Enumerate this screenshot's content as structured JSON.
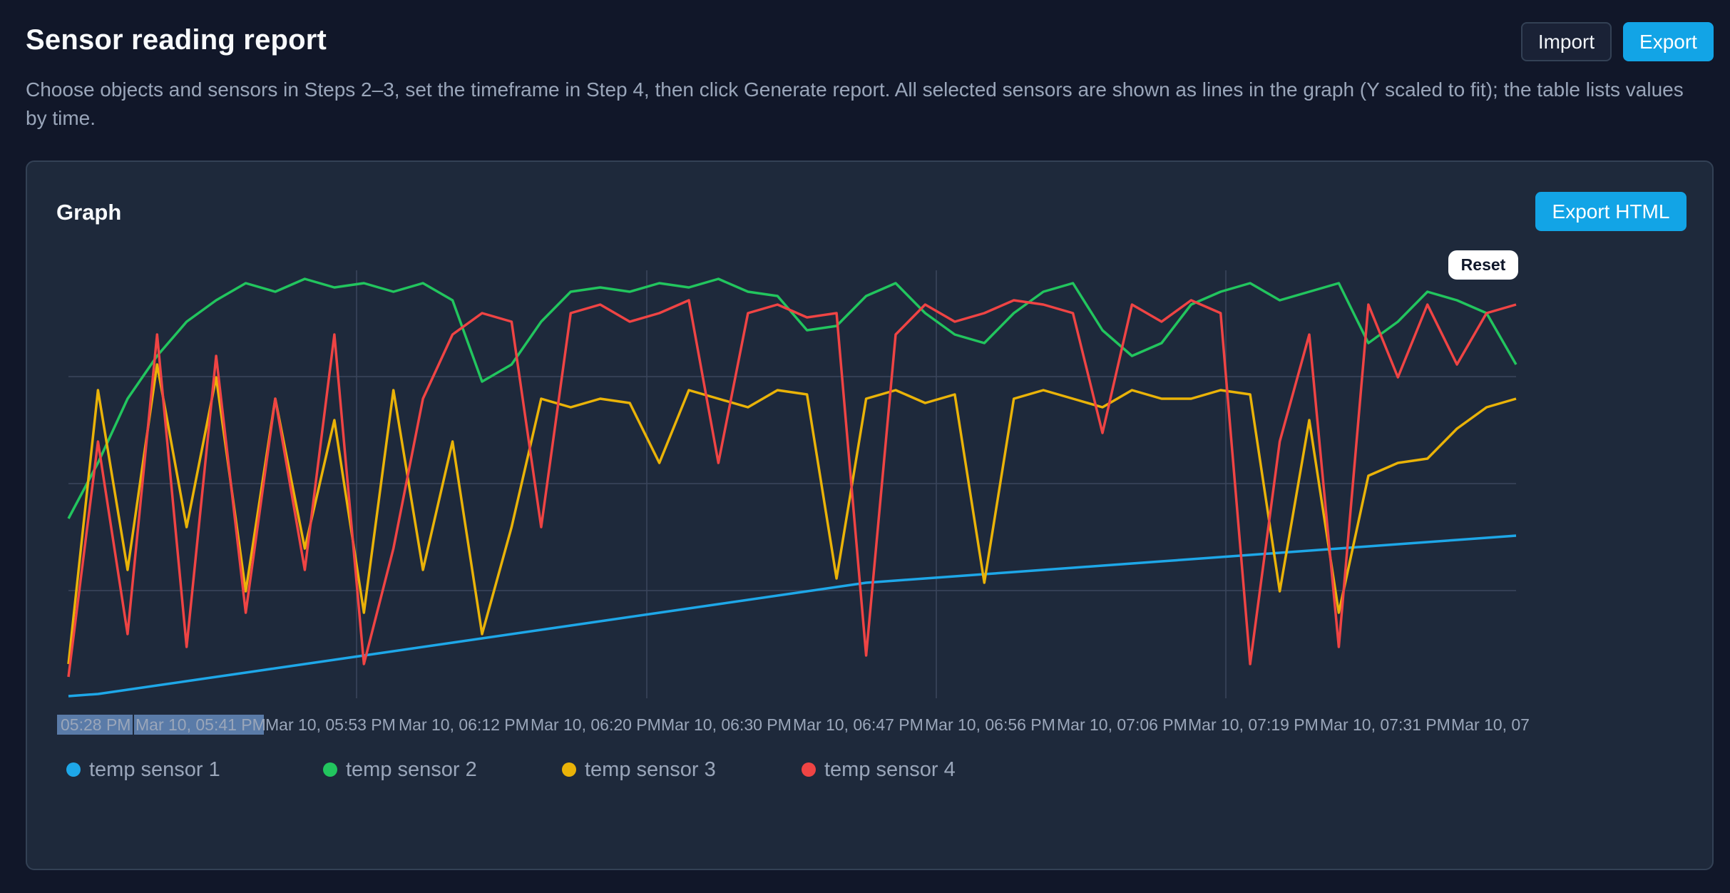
{
  "header": {
    "title": "Sensor reading report",
    "import_label": "Import",
    "export_label": "Export",
    "description": "Choose objects and sensors in Steps 2–3, set the timeframe in Step 4, then click Generate report. All selected sensors are shown as lines in the graph (Y scaled to fit); the table lists values by time."
  },
  "panel": {
    "title": "Graph",
    "export_html_label": "Export HTML",
    "reset_label": "Reset"
  },
  "colors": {
    "accent": "#12a4e6",
    "sensor1": "#1ea7e8",
    "sensor2": "#22c55e",
    "sensor3": "#eab308",
    "sensor4": "#ef4444"
  },
  "chart_data": {
    "type": "line",
    "grid": true,
    "x_ticks": [
      "05:28 PM",
      "Mar 10, 05:41 PM",
      "Mar 10, 05:53 PM",
      "Mar 10, 06:12 PM",
      "Mar 10, 06:20 PM",
      "Mar 10, 06:30 PM",
      "Mar 10, 06:47 PM",
      "Mar 10, 06:56 PM",
      "Mar 10, 07:06 PM",
      "Mar 10, 07:19 PM",
      "Mar 10, 07:31 PM",
      "Mar 10, 07"
    ],
    "highlighted_ticks": [
      0,
      1
    ],
    "legend_placement": "bottom-left",
    "series": [
      {
        "name": "temp sensor 1",
        "color": "#1ea7e8",
        "values": [
          0.5,
          1,
          2,
          3,
          4,
          5,
          6,
          7,
          8,
          9,
          10,
          11,
          12,
          13,
          14,
          15,
          16,
          17,
          18,
          19,
          20,
          21,
          22,
          23,
          24,
          25,
          26,
          27,
          27.5,
          28,
          28.5,
          29,
          29.5,
          30,
          30.5,
          31,
          31.5,
          32,
          32.5,
          33,
          33.5,
          34,
          34.5,
          35,
          35.5,
          36,
          36.5,
          37,
          37.5,
          38
        ]
      },
      {
        "name": "temp sensor 2",
        "color": "#22c55e",
        "values": [
          42,
          55,
          70,
          80,
          88,
          93,
          97,
          95,
          98,
          96,
          97,
          95,
          97,
          93,
          74,
          78,
          88,
          95,
          96,
          95,
          97,
          96,
          98,
          95,
          94,
          86,
          87,
          94,
          97,
          90,
          85,
          83,
          90,
          95,
          97,
          86,
          80,
          83,
          92,
          95,
          97,
          93,
          95,
          97,
          83,
          88,
          95,
          93,
          90,
          78
        ]
      },
      {
        "name": "temp sensor 3",
        "color": "#eab308",
        "values": [
          8,
          72,
          30,
          78,
          40,
          75,
          25,
          70,
          35,
          65,
          20,
          72,
          30,
          60,
          15,
          40,
          70,
          68,
          70,
          69,
          55,
          72,
          70,
          68,
          72,
          71,
          28,
          70,
          72,
          69,
          71,
          27,
          70,
          72,
          70,
          68,
          72,
          70,
          70,
          72,
          71,
          25,
          65,
          20,
          52,
          55,
          56,
          63,
          68,
          70
        ]
      },
      {
        "name": "temp sensor 4",
        "color": "#ef4444",
        "values": [
          5,
          60,
          15,
          85,
          12,
          80,
          20,
          70,
          30,
          85,
          8,
          35,
          70,
          85,
          90,
          88,
          40,
          90,
          92,
          88,
          90,
          93,
          55,
          90,
          92,
          89,
          90,
          10,
          85,
          92,
          88,
          90,
          93,
          92,
          90,
          62,
          92,
          88,
          93,
          90,
          8,
          60,
          85,
          12,
          92,
          75,
          92,
          78,
          90,
          92
        ]
      }
    ]
  }
}
